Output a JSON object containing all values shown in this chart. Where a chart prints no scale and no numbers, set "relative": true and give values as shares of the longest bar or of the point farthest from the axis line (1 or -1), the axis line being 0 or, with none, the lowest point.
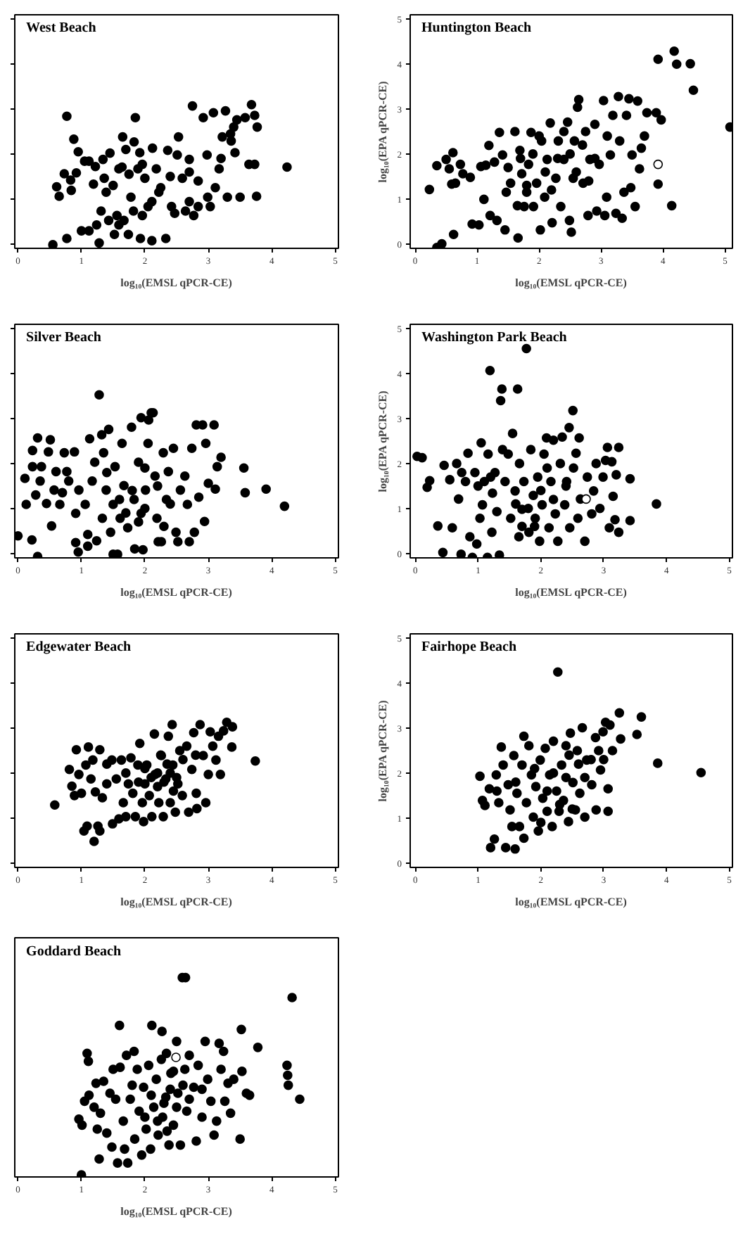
{
  "chart_data": [
    {
      "type": "scatter",
      "title": "West Beach",
      "xlabel": "log₁₀(EMSL qPCR-CE)",
      "xlim": [
        -0.05,
        5.05
      ],
      "ylim": [
        -0.1,
        5.1
      ],
      "xticks": [
        0,
        1,
        2,
        3,
        4,
        5
      ],
      "yticks": [
        {
          "value": 0,
          "label": null
        },
        {
          "value": 1,
          "label": null
        },
        {
          "value": 2,
          "label": null
        },
        {
          "value": 3,
          "label": null
        },
        {
          "value": 4,
          "label": null
        },
        {
          "value": 5,
          "label": null
        }
      ],
      "tick_labels": "x",
      "marker": "circle",
      "series": [
        {
          "color": "#000000",
          "x": [
            0.55,
            0.77,
            0.77,
            0.61,
            0.65,
            0.73,
            0.83,
            0.84,
            0.88,
            0.92,
            0.95,
            1.05,
            1.12,
            1.0,
            1.12,
            1.19,
            1.22,
            1.28,
            1.24,
            1.31,
            1.34,
            1.36,
            1.39,
            1.45,
            1.43,
            1.52,
            1.59,
            1.67,
            1.65,
            1.64,
            1.7,
            1.74,
            1.78,
            1.83,
            1.85,
            1.89,
            1.92,
            1.96,
            1.93,
            2.0,
            2.05,
            2.11,
            2.12,
            2.18,
            2.25,
            2.33,
            2.36,
            2.42,
            2.51,
            2.53,
            2.59,
            2.64,
            2.7,
            2.75,
            2.77,
            2.84,
            2.92,
            2.98,
            3.03,
            3.08,
            3.11,
            3.17,
            3.22,
            3.27,
            3.3,
            3.36,
            3.4,
            3.42,
            3.45,
            3.5,
            3.58,
            3.64,
            3.68,
            3.73,
            3.76,
            3.77,
            3.73,
            4.24,
            1.56,
            1.82,
            2.11,
            2.22,
            2.47,
            2.7,
            2.84,
            2.99,
            1.59,
            1.96,
            2.4,
            2.7,
            3.2,
            3.35,
            1.5,
            1.75
          ],
          "values": [
            -0.02,
            2.84,
            0.12,
            1.27,
            1.06,
            1.56,
            1.42,
            1.19,
            2.33,
            1.58,
            2.05,
            1.84,
            1.84,
            0.29,
            0.29,
            1.33,
            1.72,
            0.02,
            0.42,
            0.73,
            1.88,
            1.46,
            1.15,
            2.02,
            0.52,
            0.21,
            0.42,
            0.52,
            2.38,
            1.71,
            2.1,
            0.21,
            1.04,
            2.27,
            2.81,
            1.67,
            2.03,
            0.63,
            0.12,
            1.46,
            0.83,
            0.07,
            2.13,
            1.67,
            1.25,
            0.12,
            2.08,
            0.83,
            1.98,
            2.38,
            1.46,
            0.73,
            1.88,
            3.07,
            0.63,
            1.4,
            2.81,
            1.98,
            0.83,
            2.92,
            1.25,
            1.67,
            2.38,
            2.96,
            1.04,
            2.29,
            2.6,
            2.03,
            2.76,
            1.04,
            2.81,
            1.77,
            3.1,
            2.86,
            1.06,
            2.6,
            1.77,
            1.71,
            0.63,
            0.73,
            0.94,
            1.15,
            0.68,
            0.94,
            0.83,
            1.04,
            1.67,
            1.77,
            1.5,
            1.6,
            1.9,
            2.45,
            1.3,
            1.55
          ]
        }
      ]
    },
    {
      "type": "scatter",
      "title": "Huntington Beach",
      "xlabel": "log₁₀(EMSL qPCR-CE)",
      "ylabel": "log₁₀(EPA qPCR-CE)",
      "xlim": [
        -0.08,
        5.12
      ],
      "ylim": [
        -0.1,
        5.1
      ],
      "xticks": [
        0,
        1,
        2,
        3,
        4,
        5
      ],
      "yticks": [
        0,
        1,
        2,
        3,
        4,
        5
      ],
      "marker": "circle",
      "series": [
        {
          "color": "#000000",
          "x": [
            0.23,
            0.35,
            0.35,
            0.43,
            0.5,
            0.55,
            0.59,
            0.61,
            0.62,
            0.65,
            0.73,
            0.77,
            0.89,
            0.92,
            1.03,
            1.06,
            1.11,
            1.14,
            1.19,
            1.21,
            1.28,
            1.32,
            1.36,
            1.41,
            1.45,
            1.47,
            1.54,
            1.61,
            1.65,
            1.66,
            1.69,
            1.72,
            1.76,
            1.8,
            1.83,
            1.87,
            1.91,
            1.96,
            2.02,
            2.04,
            2.09,
            2.13,
            2.18,
            2.21,
            2.27,
            2.31,
            2.35,
            2.4,
            2.46,
            2.49,
            2.52,
            2.55,
            2.57,
            2.62,
            2.64,
            2.71,
            2.75,
            2.79,
            2.82,
            2.9,
            2.93,
            2.97,
            3.04,
            3.06,
            3.09,
            3.15,
            3.19,
            3.24,
            3.28,
            3.3,
            3.34,
            3.37,
            3.41,
            3.45,
            3.48,
            3.5,
            3.55,
            3.59,
            3.62,
            3.65,
            3.7,
            3.74,
            3.89,
            3.92,
            3.92,
            3.97,
            4.14,
            4.18,
            4.22,
            4.44,
            4.49,
            5.08,
            1.5,
            1.7,
            1.9,
            2.1,
            2.3,
            2.5,
            2.7,
            2.9,
            2.2,
            2.6,
            1.8,
            2.0,
            2.4,
            2.8,
            3.1
          ],
          "values": [
            1.21,
            1.74,
            -0.08,
            0.0,
            1.88,
            1.67,
            1.33,
            2.03,
            0.21,
            1.35,
            1.77,
            1.56,
            1.48,
            0.44,
            0.42,
            1.72,
            0.99,
            1.75,
            2.19,
            0.63,
            1.82,
            0.52,
            2.48,
            1.98,
            0.31,
            1.15,
            1.35,
            2.5,
            0.85,
            0.13,
            2.08,
            1.56,
            0.83,
            1.15,
            1.77,
            2.48,
            0.83,
            1.35,
            0.31,
            2.29,
            1.04,
            1.88,
            2.69,
            0.47,
            1.46,
            2.29,
            0.83,
            1.88,
            2.71,
            0.52,
            0.26,
            1.46,
            2.29,
            3.04,
            3.21,
            1.35,
            2.5,
            0.63,
            1.88,
            2.66,
            0.73,
            1.77,
            3.19,
            0.63,
            1.04,
            1.98,
            2.86,
            0.68,
            3.28,
            2.29,
            0.57,
            1.15,
            2.86,
            3.23,
            1.25,
            1.98,
            0.83,
            3.18,
            1.67,
            2.13,
            2.4,
            2.92,
            2.92,
            4.11,
            1.33,
            2.76,
            0.85,
            4.29,
            4.0,
            4.01,
            3.42,
            2.6,
            1.7,
            1.9,
            2.0,
            1.6,
            1.9,
            2.0,
            2.2,
            1.9,
            1.2,
            1.6,
            1.3,
            2.4,
            2.5,
            1.4,
            2.4
          ]
        },
        {
          "color": "#ffffff",
          "x": [
            3.92
          ],
          "values": [
            1.77
          ]
        }
      ]
    },
    {
      "type": "scatter",
      "title": "Silver Beach",
      "xlabel": "log₁₀(EMSL qPCR-CE)",
      "xlim": [
        -0.05,
        5.05
      ],
      "ylim": [
        -0.1,
        5.1
      ],
      "xticks": [
        0,
        1,
        2,
        3,
        4,
        5
      ],
      "yticks": [
        {
          "value": 0,
          "label": null
        },
        {
          "value": 1,
          "label": null
        },
        {
          "value": 2,
          "label": null
        },
        {
          "value": 3,
          "label": null
        },
        {
          "value": 4,
          "label": null
        },
        {
          "value": 5,
          "label": null
        }
      ],
      "tick_labels": "x",
      "marker": "circle",
      "series": [
        {
          "color": "#000000",
          "x": [
            0.0,
            0.11,
            0.13,
            0.22,
            0.23,
            0.23,
            0.28,
            0.31,
            0.31,
            0.35,
            0.37,
            0.45,
            0.48,
            0.51,
            0.53,
            0.57,
            0.6,
            0.66,
            0.7,
            0.73,
            0.77,
            0.8,
            0.89,
            0.91,
            0.91,
            0.95,
            0.96,
            1.06,
            1.1,
            1.1,
            1.13,
            1.17,
            1.21,
            1.24,
            1.28,
            1.32,
            1.33,
            1.35,
            1.39,
            1.43,
            1.46,
            1.5,
            1.5,
            1.53,
            1.57,
            1.61,
            1.64,
            1.67,
            1.73,
            1.79,
            1.83,
            1.84,
            1.9,
            1.94,
            1.94,
            1.97,
            2.01,
            2.05,
            2.06,
            2.1,
            2.13,
            2.16,
            2.19,
            2.21,
            2.26,
            2.29,
            2.34,
            2.37,
            2.45,
            2.49,
            2.52,
            2.56,
            2.63,
            2.67,
            2.7,
            2.74,
            2.78,
            2.81,
            2.85,
            2.91,
            2.94,
            2.96,
            3.0,
            3.09,
            3.11,
            3.14,
            3.2,
            3.56,
            3.58,
            3.91,
            4.2,
            1.8,
            2.0,
            1.6,
            2.2,
            1.9,
            2.4,
            1.4,
            2.0,
            1.7,
            2.3
          ],
          "values": [
            0.39,
            1.67,
            1.09,
            0.3,
            1.93,
            2.29,
            1.3,
            -0.07,
            2.57,
            1.61,
            1.93,
            1.11,
            2.26,
            2.53,
            0.61,
            1.41,
            1.82,
            1.09,
            1.35,
            2.24,
            1.82,
            1.61,
            2.26,
            0.24,
            0.89,
            0.03,
            1.41,
            1.09,
            0.42,
            0.16,
            2.55,
            1.61,
            2.03,
            0.28,
            3.53,
            2.64,
            0.78,
            2.24,
            1.41,
            2.76,
            0.47,
            1.09,
            -0.02,
            1.93,
            -0.02,
            0.78,
            2.45,
            1.51,
            0.57,
            2.81,
            1.2,
            0.1,
            2.03,
            0.89,
            3.02,
            0.08,
            1.41,
            2.45,
            2.97,
            3.13,
            3.13,
            1.72,
            0.78,
            0.26,
            0.26,
            2.24,
            1.2,
            1.82,
            2.34,
            0.47,
            0.26,
            1.41,
            1.72,
            1.09,
            0.26,
            2.34,
            0.47,
            2.86,
            1.25,
            2.86,
            0.71,
            2.45,
            1.56,
            2.86,
            1.43,
            1.93,
            2.14,
            1.9,
            1.35,
            1.43,
            1.05,
            1.4,
            1.0,
            1.2,
            1.5,
            0.7,
            1.1,
            1.8,
            1.9,
            0.9,
            0.6
          ]
        }
      ]
    },
    {
      "type": "scatter",
      "title": "Washington Park Beach",
      "xlabel": "log₁₀(EMSL qPCR-CE)",
      "ylabel": "log₁₀(EPA qPCR-CE)",
      "xlim": [
        -0.08,
        5.05
      ],
      "ylim": [
        -0.1,
        5.1
      ],
      "xticks": [
        0,
        1,
        2,
        3,
        4,
        5
      ],
      "yticks": [
        0,
        1,
        2,
        3,
        4,
        5
      ],
      "marker": "circle",
      "series": [
        {
          "color": "#000000",
          "x": [
            0.03,
            0.11,
            0.19,
            0.23,
            0.36,
            0.44,
            0.46,
            0.55,
            0.59,
            0.66,
            0.69,
            0.73,
            0.74,
            0.8,
            0.84,
            0.87,
            0.91,
            0.95,
            0.98,
            1.03,
            1.05,
            1.07,
            1.1,
            1.15,
            1.16,
            1.19,
            1.22,
            1.23,
            1.27,
            1.3,
            1.34,
            1.36,
            1.38,
            1.39,
            1.43,
            1.48,
            1.52,
            1.55,
            1.59,
            1.63,
            1.65,
            1.66,
            1.7,
            1.73,
            1.77,
            1.81,
            1.84,
            1.88,
            1.91,
            1.95,
            1.98,
            2.02,
            2.05,
            2.09,
            2.13,
            2.16,
            2.2,
            2.23,
            2.27,
            2.31,
            2.34,
            2.38,
            2.41,
            2.45,
            2.46,
            2.51,
            2.52,
            2.56,
            2.59,
            2.61,
            2.63,
            2.7,
            2.74,
            2.81,
            2.84,
            2.88,
            2.94,
            2.99,
            3.03,
            3.06,
            3.09,
            3.13,
            3.15,
            3.18,
            3.2,
            3.24,
            3.24,
            3.42,
            3.42,
            3.84,
            1.8,
            2.0,
            1.9,
            2.1,
            1.6,
            2.2,
            1.0,
            1.2,
            2.4,
            1.7
          ],
          "values": [
            2.16,
            2.13,
            1.47,
            1.62,
            0.61,
            0.02,
            1.96,
            1.64,
            0.57,
            2.0,
            1.21,
            -0.02,
            1.8,
            1.6,
            2.23,
            0.37,
            -0.09,
            1.8,
            0.21,
            0.78,
            2.46,
            1.08,
            1.6,
            -0.09,
            2.21,
            4.07,
            0.47,
            1.34,
            1.8,
            0.93,
            -0.04,
            3.4,
            3.66,
            2.31,
            1.6,
            2.21,
            0.78,
            2.67,
            1.39,
            3.66,
            0.37,
            2.0,
            0.98,
            1.6,
            4.56,
            0.47,
            2.31,
            1.29,
            0.78,
            1.7,
            0.27,
            1.08,
            2.21,
            2.57,
            0.57,
            1.6,
            2.52,
            0.88,
            0.27,
            2.0,
            2.59,
            1.08,
            1.6,
            2.8,
            0.57,
            3.18,
            1.9,
            2.23,
            0.78,
            2.57,
            1.21,
            0.27,
            1.7,
            0.88,
            1.39,
            2.0,
            1.0,
            1.7,
            2.07,
            2.36,
            0.57,
            2.04,
            1.27,
            0.75,
            1.75,
            2.36,
            0.47,
            1.66,
            0.73,
            1.1,
            1.0,
            1.4,
            0.6,
            1.9,
            1.1,
            1.2,
            1.5,
            1.7,
            1.5,
            0.6
          ]
        },
        {
          "color": "#ffffff",
          "x": [
            2.72
          ],
          "values": [
            1.21
          ]
        }
      ]
    },
    {
      "type": "scatter",
      "title": "Edgewater Beach",
      "xlabel": "log₁₀(EMSL qPCR-CE)",
      "xlim": [
        -0.05,
        5.05
      ],
      "ylim": [
        -0.1,
        5.1
      ],
      "xticks": [
        0,
        1,
        2,
        3,
        4,
        5
      ],
      "yticks": [
        {
          "value": 0,
          "label": null
        },
        {
          "value": 1,
          "label": null
        },
        {
          "value": 2,
          "label": null
        },
        {
          "value": 3,
          "label": null
        },
        {
          "value": 4,
          "label": null
        },
        {
          "value": 5,
          "label": null
        }
      ],
      "tick_labels": "x",
      "marker": "circle",
      "series": [
        {
          "color": "#000000",
          "x": [
            0.58,
            0.81,
            0.85,
            0.89,
            0.92,
            0.96,
            1.0,
            1.04,
            1.07,
            1.09,
            1.11,
            1.15,
            1.18,
            1.2,
            1.22,
            1.26,
            1.29,
            1.29,
            1.33,
            1.4,
            1.48,
            1.49,
            1.55,
            1.59,
            1.63,
            1.66,
            1.7,
            1.74,
            1.78,
            1.81,
            1.85,
            1.89,
            1.92,
            1.96,
            1.98,
            2.0,
            2.03,
            2.07,
            2.11,
            2.15,
            2.16,
            2.22,
            2.26,
            2.29,
            2.33,
            2.37,
            2.4,
            2.43,
            2.44,
            2.48,
            2.52,
            2.55,
            2.59,
            2.66,
            2.69,
            2.74,
            2.77,
            2.81,
            2.82,
            2.87,
            2.92,
            2.96,
            3.0,
            3.03,
            3.07,
            3.12,
            3.16,
            3.19,
            3.24,
            3.29,
            3.37,
            3.38,
            3.74,
            2.1,
            2.2,
            2.3,
            2.4,
            2.2,
            2.0,
            2.35,
            2.5,
            1.9,
            2.6,
            2.45,
            2.25,
            1.7,
            1.4,
            2.8
          ],
          "values": [
            1.29,
            2.08,
            1.71,
            1.5,
            2.52,
            1.97,
            1.55,
            0.71,
            2.18,
            0.82,
            2.58,
            1.87,
            2.29,
            0.48,
            1.58,
            0.82,
            2.52,
            0.71,
            1.45,
            1.76,
            2.29,
            0.87,
            1.87,
            0.98,
            2.29,
            1.34,
            1.03,
            1.76,
            2.34,
            1.55,
            1.03,
            2.18,
            2.66,
            1.34,
            0.92,
            1.76,
            2.18,
            1.5,
            1.03,
            2.87,
            1.97,
            1.34,
            2.39,
            1.03,
            1.87,
            2.82,
            1.34,
            3.08,
            2.18,
            1.13,
            1.76,
            2.5,
            1.5,
            2.6,
            1.13,
            2.08,
            2.9,
            1.55,
            1.21,
            3.08,
            2.39,
            1.34,
            1.97,
            2.92,
            2.6,
            2.29,
            2.82,
            1.97,
            2.94,
            3.13,
            2.58,
            3.03,
            2.27,
            1.9,
            2.0,
            1.8,
            2.0,
            1.7,
            2.1,
            2.2,
            1.9,
            1.8,
            2.3,
            1.6,
            2.4,
            2.0,
            2.2,
            2.4
          ]
        }
      ]
    },
    {
      "type": "scatter",
      "title": "Fairhope Beach",
      "xlabel": "log₁₀(EMSL qPCR-CE)",
      "ylabel": "log₁₀(EPA qPCR-CE)",
      "xlim": [
        -0.08,
        5.05
      ],
      "ylim": [
        -0.1,
        5.1
      ],
      "xticks": [
        0,
        1,
        2,
        3,
        4,
        5
      ],
      "yticks": [
        0,
        1,
        2,
        3,
        4,
        5
      ],
      "marker": "circle",
      "series": [
        {
          "color": "#000000",
          "x": [
            1.03,
            1.07,
            1.11,
            1.18,
            1.2,
            1.26,
            1.29,
            1.33,
            1.37,
            1.4,
            1.44,
            1.48,
            1.51,
            1.54,
            1.57,
            1.59,
            1.62,
            1.66,
            1.7,
            1.73,
            1.73,
            1.77,
            1.81,
            1.85,
            1.88,
            1.92,
            1.96,
            1.99,
            2.03,
            2.07,
            2.1,
            2.14,
            2.18,
            2.2,
            2.25,
            2.27,
            2.29,
            2.33,
            2.36,
            2.4,
            2.44,
            2.47,
            2.51,
            2.55,
            2.58,
            2.62,
            2.66,
            2.7,
            2.73,
            2.81,
            2.87,
            2.88,
            2.92,
            2.95,
            2.99,
            3.03,
            3.07,
            3.07,
            3.1,
            3.14,
            3.25,
            3.27,
            3.53,
            3.6,
            3.86,
            4.55,
            1.9,
            2.2,
            2.4,
            2.6,
            2.8,
            2.3,
            2.5,
            2.1,
            1.6,
            1.3,
            2.7,
            3.0,
            2.0,
            2.45
          ],
          "values": [
            1.93,
            1.39,
            1.28,
            1.65,
            0.34,
            0.53,
            1.96,
            1.34,
            2.58,
            2.18,
            0.34,
            1.74,
            1.18,
            0.81,
            2.39,
            0.31,
            1.55,
            0.81,
            2.18,
            2.82,
            0.55,
            1.34,
            2.61,
            1.96,
            1.02,
            1.7,
            0.71,
            2.29,
            1.44,
            2.55,
            1.15,
            1.96,
            0.81,
            2.71,
            1.6,
            4.25,
            1.15,
            2.18,
            1.39,
            2.61,
            0.92,
            2.89,
            1.79,
            1.18,
            2.5,
            1.55,
            3.01,
            1.02,
            2.29,
            1.74,
            2.79,
            1.18,
            2.5,
            2.07,
            2.92,
            3.13,
            1.65,
            1.15,
            3.07,
            2.5,
            3.34,
            2.76,
            2.86,
            3.25,
            2.22,
            2.01,
            2.1,
            2.0,
            1.9,
            2.2,
            2.3,
            1.3,
            1.2,
            1.6,
            1.8,
            1.6,
            1.9,
            2.3,
            0.9,
            2.4
          ]
        }
      ]
    },
    {
      "type": "scatter",
      "title": "Goddard Beach",
      "xlabel": "log₁₀(EMSL qPCR-CE)",
      "xlim": [
        -0.05,
        5.05
      ],
      "xticks": [
        0,
        1,
        2,
        3,
        4,
        5
      ],
      "relative": true,
      "marker": "circle",
      "series": [
        {
          "color": "#000000",
          "x": [
            1.0,
            0.96,
            1.01,
            1.09,
            1.11,
            1.05,
            1.12,
            1.2,
            1.23,
            1.25,
            1.28,
            1.3,
            1.35,
            1.4,
            1.45,
            1.48,
            1.5,
            1.54,
            1.57,
            1.6,
            1.61,
            1.66,
            1.68,
            1.71,
            1.73,
            1.77,
            1.83,
            1.84,
            1.88,
            1.91,
            1.95,
            1.98,
            2.02,
            2.06,
            2.09,
            2.11,
            2.14,
            2.18,
            2.21,
            2.26,
            2.27,
            2.28,
            2.33,
            2.34,
            2.38,
            2.41,
            2.45,
            2.5,
            2.52,
            2.56,
            2.59,
            2.64,
            2.63,
            2.66,
            2.7,
            2.77,
            2.81,
            2.84,
            2.9,
            2.95,
            2.99,
            3.04,
            3.09,
            3.13,
            3.17,
            3.2,
            3.24,
            3.26,
            3.31,
            3.35,
            3.4,
            3.5,
            3.52,
            3.53,
            3.6,
            3.65,
            3.78,
            4.24,
            4.25,
            4.26,
            4.32,
            4.44,
            2.3,
            2.4,
            2.2,
            2.5,
            2.6,
            2.1,
            2.35,
            2.7,
            2.0,
            1.8,
            2.45,
            2.9
          ],
          "values": [
            0.01,
            0.29,
            0.26,
            0.62,
            0.58,
            0.38,
            0.41,
            0.35,
            0.47,
            0.24,
            0.09,
            0.32,
            0.48,
            0.22,
            0.42,
            0.15,
            0.54,
            0.39,
            0.07,
            0.76,
            0.55,
            0.28,
            0.14,
            0.61,
            0.07,
            0.39,
            0.63,
            0.19,
            0.54,
            0.33,
            0.11,
            0.45,
            0.24,
            0.56,
            0.14,
            0.76,
            0.35,
            0.49,
            0.21,
            0.59,
            0.73,
            0.3,
            0.4,
            0.62,
            0.16,
            0.52,
            0.26,
            0.68,
            0.42,
            0.16,
            1,
            1,
            0.54,
            0.33,
            0.61,
            0.45,
            0.18,
            0.56,
            0.3,
            0.68,
            0.49,
            0.38,
            0.21,
            0.28,
            0.67,
            0.54,
            0.63,
            0.38,
            0.47,
            0.32,
            0.49,
            0.19,
            0.74,
            0.53,
            0.42,
            0.41,
            0.65,
            0.56,
            0.51,
            0.46,
            0.9,
            0.39,
            0.37,
            0.44,
            0.28,
            0.35,
            0.46,
            0.41,
            0.23,
            0.39,
            0.3,
            0.46,
            0.53,
            0.44
          ]
        },
        {
          "color": "#ffffff",
          "x": [
            2.49
          ],
          "values": [
            0.6
          ]
        }
      ]
    }
  ]
}
